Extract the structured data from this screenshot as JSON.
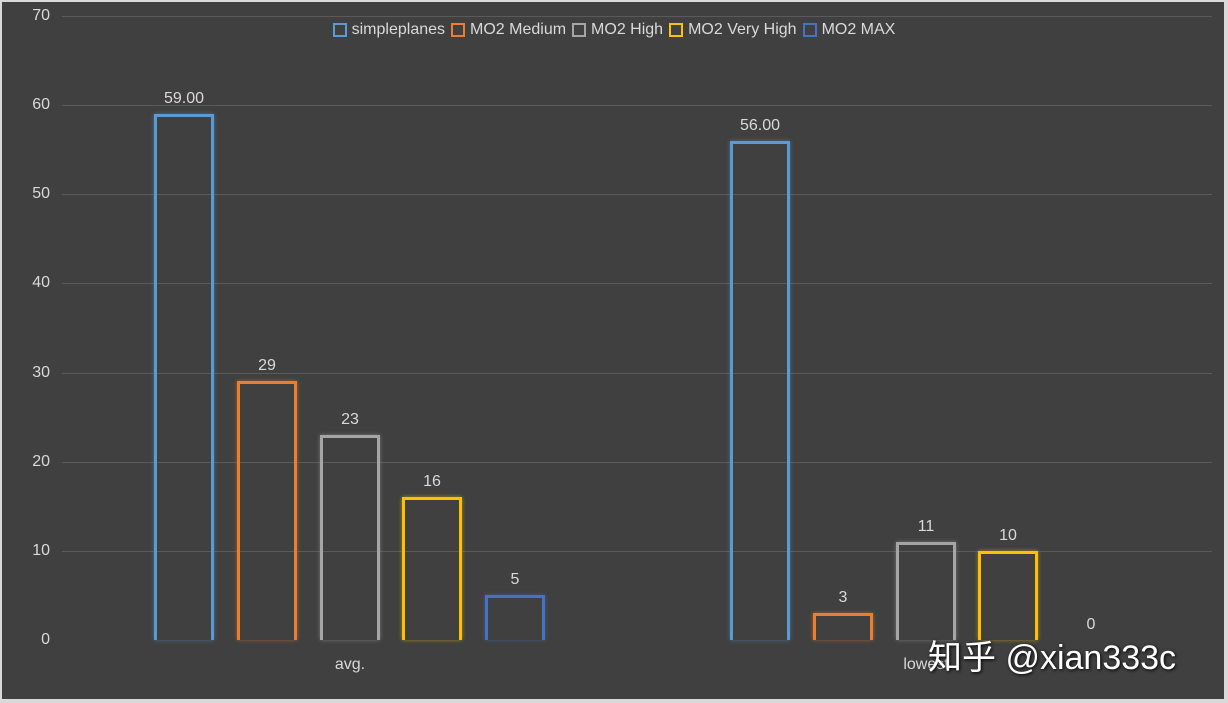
{
  "chart_data": {
    "type": "bar",
    "title": "",
    "xlabel": "",
    "ylabel": "",
    "ylim": [
      0,
      70
    ],
    "yticks": [
      0,
      10,
      20,
      30,
      40,
      50,
      60,
      70
    ],
    "grid": true,
    "legend_position": "top",
    "categories": [
      "avg.",
      "lowest"
    ],
    "series": [
      {
        "name": "simpleplanes",
        "values": [
          59,
          56
        ],
        "labels": [
          "59.00",
          "56.00"
        ],
        "color": "#5b9bd5"
      },
      {
        "name": "MO2 Medium",
        "values": [
          29,
          3
        ],
        "labels": [
          "29",
          "3"
        ],
        "color": "#ed7d31"
      },
      {
        "name": "MO2 High",
        "values": [
          23,
          11
        ],
        "labels": [
          "23",
          "11"
        ],
        "color": "#a5a5a5"
      },
      {
        "name": "MO2 Very High",
        "values": [
          16,
          10
        ],
        "labels": [
          "16",
          "10"
        ],
        "color": "#ffc000"
      },
      {
        "name": "MO2 MAX",
        "values": [
          5,
          0
        ],
        "labels": [
          "5",
          "0"
        ],
        "color": "#4472c4"
      }
    ]
  },
  "yaxis": {
    "ticks": [
      "0",
      "10",
      "20",
      "30",
      "40",
      "50",
      "60",
      "70"
    ]
  },
  "watermark": "知乎 @xian333c"
}
